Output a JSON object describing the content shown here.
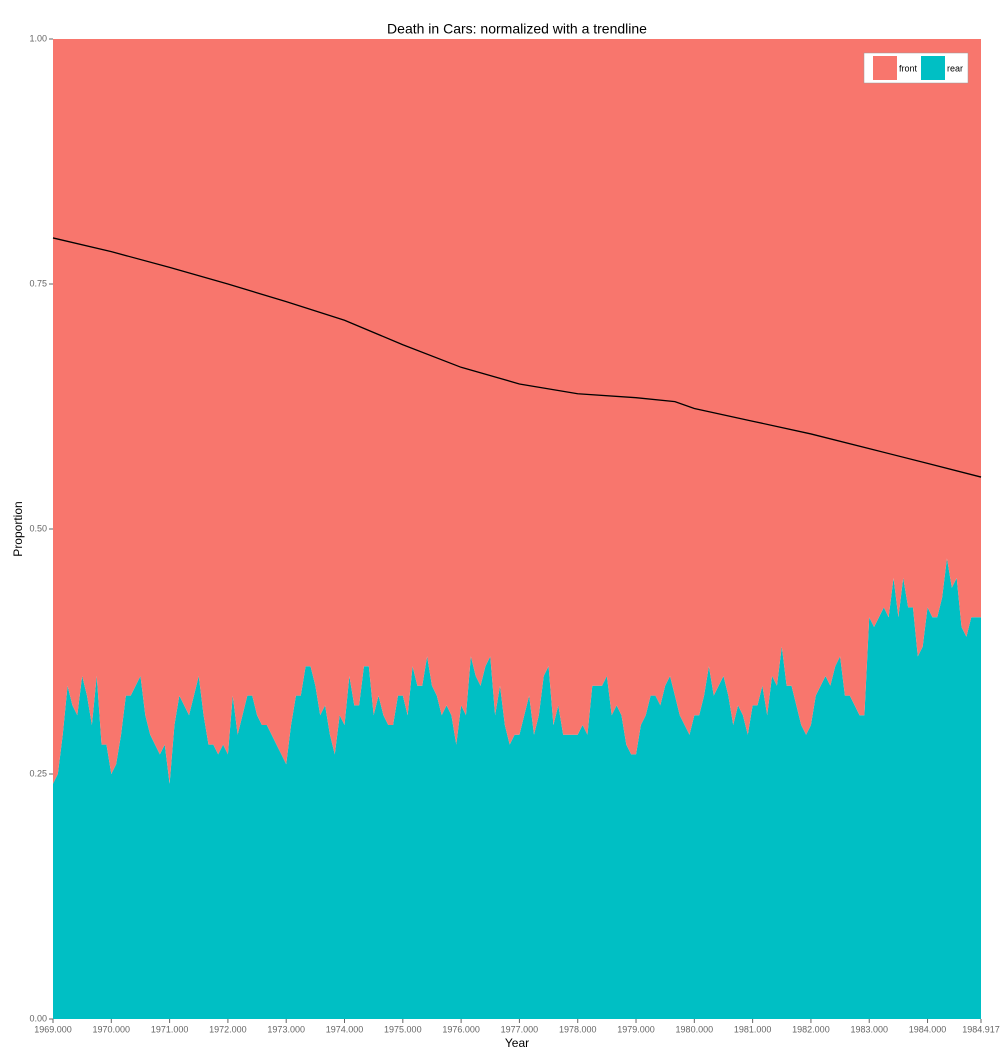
{
  "chart_data": {
    "type": "area",
    "title": "Death in Cars: normalized with a trendline",
    "xlabel": "Year",
    "ylabel": "Proportion",
    "x": [
      1969,
      1969.083,
      1969.167,
      1969.25,
      1969.333,
      1969.417,
      1969.5,
      1969.583,
      1969.667,
      1969.75,
      1969.833,
      1969.917,
      1970,
      1970.083,
      1970.167,
      1970.25,
      1970.333,
      1970.417,
      1970.5,
      1970.583,
      1970.667,
      1970.75,
      1970.833,
      1970.917,
      1971,
      1971.083,
      1971.167,
      1971.25,
      1971.333,
      1971.417,
      1971.5,
      1971.583,
      1971.667,
      1971.75,
      1971.833,
      1971.917,
      1972,
      1972.083,
      1972.167,
      1972.25,
      1972.333,
      1972.417,
      1972.5,
      1972.583,
      1972.667,
      1972.75,
      1972.833,
      1972.917,
      1973,
      1973.083,
      1973.167,
      1973.25,
      1973.333,
      1973.417,
      1973.5,
      1973.583,
      1973.667,
      1973.75,
      1973.833,
      1973.917,
      1974,
      1974.083,
      1974.167,
      1974.25,
      1974.333,
      1974.417,
      1974.5,
      1974.583,
      1974.667,
      1974.75,
      1974.833,
      1974.917,
      1975,
      1975.083,
      1975.167,
      1975.25,
      1975.333,
      1975.417,
      1975.5,
      1975.583,
      1975.667,
      1975.75,
      1975.833,
      1975.917,
      1976,
      1976.083,
      1976.167,
      1976.25,
      1976.333,
      1976.417,
      1976.5,
      1976.583,
      1976.667,
      1976.75,
      1976.833,
      1976.917,
      1977,
      1977.083,
      1977.167,
      1977.25,
      1977.333,
      1977.417,
      1977.5,
      1977.583,
      1977.667,
      1977.75,
      1977.833,
      1977.917,
      1978,
      1978.083,
      1978.167,
      1978.25,
      1978.333,
      1978.417,
      1978.5,
      1978.583,
      1978.667,
      1978.75,
      1978.833,
      1978.917,
      1979,
      1979.083,
      1979.167,
      1979.25,
      1979.333,
      1979.417,
      1979.5,
      1979.583,
      1979.667,
      1979.75,
      1979.833,
      1979.917,
      1980,
      1980.083,
      1980.167,
      1980.25,
      1980.333,
      1980.417,
      1980.5,
      1980.583,
      1980.667,
      1980.75,
      1980.833,
      1980.917,
      1981,
      1981.083,
      1981.167,
      1981.25,
      1981.333,
      1981.417,
      1981.5,
      1981.583,
      1981.667,
      1981.75,
      1981.833,
      1981.917,
      1982,
      1982.083,
      1982.167,
      1982.25,
      1982.333,
      1982.417,
      1982.5,
      1982.583,
      1982.667,
      1982.75,
      1982.833,
      1982.917,
      1983,
      1983.083,
      1983.167,
      1983.25,
      1983.333,
      1983.417,
      1983.5,
      1983.583,
      1983.667,
      1983.75,
      1983.833,
      1983.917,
      1984,
      1984.083,
      1984.167,
      1984.25,
      1984.333,
      1984.417,
      1984.5,
      1984.583,
      1984.667,
      1984.75,
      1984.833,
      1984.917
    ],
    "series": [
      {
        "name": "front",
        "color": "#f8766d",
        "values": [
          0.76,
          0.75,
          0.71,
          0.66,
          0.68,
          0.69,
          0.65,
          0.67,
          0.7,
          0.65,
          0.72,
          0.72,
          0.75,
          0.74,
          0.71,
          0.67,
          0.67,
          0.66,
          0.65,
          0.69,
          0.71,
          0.72,
          0.73,
          0.72,
          0.76,
          0.7,
          0.67,
          0.68,
          0.69,
          0.67,
          0.65,
          0.69,
          0.72,
          0.72,
          0.73,
          0.72,
          0.73,
          0.67,
          0.71,
          0.69,
          0.67,
          0.67,
          0.69,
          0.7,
          0.7,
          0.71,
          0.72,
          0.73,
          0.74,
          0.7,
          0.67,
          0.67,
          0.64,
          0.64,
          0.66,
          0.69,
          0.68,
          0.71,
          0.73,
          0.69,
          0.7,
          0.65,
          0.68,
          0.68,
          0.64,
          0.64,
          0.69,
          0.67,
          0.69,
          0.7,
          0.7,
          0.67,
          0.67,
          0.69,
          0.64,
          0.66,
          0.66,
          0.63,
          0.66,
          0.67,
          0.69,
          0.68,
          0.69,
          0.72,
          0.68,
          0.69,
          0.63,
          0.65,
          0.66,
          0.64,
          0.63,
          0.69,
          0.66,
          0.7,
          0.72,
          0.71,
          0.71,
          0.69,
          0.67,
          0.71,
          0.69,
          0.65,
          0.64,
          0.7,
          0.68,
          0.71,
          0.71,
          0.71,
          0.71,
          0.7,
          0.71,
          0.66,
          0.66,
          0.66,
          0.65,
          0.69,
          0.68,
          0.69,
          0.72,
          0.73,
          0.73,
          0.7,
          0.69,
          0.67,
          0.67,
          0.68,
          0.66,
          0.65,
          0.67,
          0.69,
          0.7,
          0.71,
          0.69,
          0.69,
          0.67,
          0.64,
          0.67,
          0.66,
          0.65,
          0.67,
          0.7,
          0.68,
          0.69,
          0.71,
          0.68,
          0.68,
          0.66,
          0.69,
          0.65,
          0.66,
          0.62,
          0.66,
          0.66,
          0.68,
          0.7,
          0.71,
          0.7,
          0.67,
          0.66,
          0.65,
          0.66,
          0.64,
          0.63,
          0.67,
          0.67,
          0.68,
          0.69,
          0.69,
          0.59,
          0.6,
          0.59,
          0.58,
          0.59,
          0.55,
          0.59,
          0.55,
          0.58,
          0.58,
          0.63,
          0.62,
          0.58,
          0.59,
          0.59,
          0.57,
          0.53,
          0.56,
          0.55,
          0.6,
          0.61,
          0.59,
          0.59,
          0.59
        ]
      },
      {
        "name": "rear",
        "color": "#00bfc4",
        "values": [
          0.24,
          0.25,
          0.29,
          0.34,
          0.32,
          0.31,
          0.35,
          0.33,
          0.3,
          0.35,
          0.28,
          0.28,
          0.25,
          0.26,
          0.29,
          0.33,
          0.33,
          0.34,
          0.35,
          0.31,
          0.29,
          0.28,
          0.27,
          0.28,
          0.24,
          0.3,
          0.33,
          0.32,
          0.31,
          0.33,
          0.35,
          0.31,
          0.28,
          0.28,
          0.27,
          0.28,
          0.27,
          0.33,
          0.29,
          0.31,
          0.33,
          0.33,
          0.31,
          0.3,
          0.3,
          0.29,
          0.28,
          0.27,
          0.26,
          0.3,
          0.33,
          0.33,
          0.36,
          0.36,
          0.34,
          0.31,
          0.32,
          0.29,
          0.27,
          0.31,
          0.3,
          0.35,
          0.32,
          0.32,
          0.36,
          0.36,
          0.31,
          0.33,
          0.31,
          0.3,
          0.3,
          0.33,
          0.33,
          0.31,
          0.36,
          0.34,
          0.34,
          0.37,
          0.34,
          0.33,
          0.31,
          0.32,
          0.31,
          0.28,
          0.32,
          0.31,
          0.37,
          0.35,
          0.34,
          0.36,
          0.37,
          0.31,
          0.34,
          0.3,
          0.28,
          0.29,
          0.29,
          0.31,
          0.33,
          0.29,
          0.31,
          0.35,
          0.36,
          0.3,
          0.32,
          0.29,
          0.29,
          0.29,
          0.29,
          0.3,
          0.29,
          0.34,
          0.34,
          0.34,
          0.35,
          0.31,
          0.32,
          0.31,
          0.28,
          0.27,
          0.27,
          0.3,
          0.31,
          0.33,
          0.33,
          0.32,
          0.34,
          0.35,
          0.33,
          0.31,
          0.3,
          0.29,
          0.31,
          0.31,
          0.33,
          0.36,
          0.33,
          0.34,
          0.35,
          0.33,
          0.3,
          0.32,
          0.31,
          0.29,
          0.32,
          0.32,
          0.34,
          0.31,
          0.35,
          0.34,
          0.38,
          0.34,
          0.34,
          0.32,
          0.3,
          0.29,
          0.3,
          0.33,
          0.34,
          0.35,
          0.34,
          0.36,
          0.37,
          0.33,
          0.33,
          0.32,
          0.31,
          0.31,
          0.41,
          0.4,
          0.41,
          0.42,
          0.41,
          0.45,
          0.41,
          0.45,
          0.42,
          0.42,
          0.37,
          0.38,
          0.42,
          0.41,
          0.41,
          0.43,
          0.47,
          0.44,
          0.45,
          0.4,
          0.39,
          0.41,
          0.41,
          0.41
        ]
      }
    ],
    "trendline": {
      "color": "#000000",
      "x": [
        1969,
        1970,
        1971,
        1972,
        1973,
        1974,
        1975,
        1976,
        1977,
        1978,
        1979,
        1979.667,
        1980,
        1981,
        1982,
        1983,
        1984,
        1984.917
      ],
      "values": [
        0.797,
        0.783,
        0.767,
        0.75,
        0.732,
        0.713,
        0.688,
        0.665,
        0.648,
        0.638,
        0.634,
        0.63,
        0.623,
        0.61,
        0.597,
        0.582,
        0.567,
        0.553
      ]
    },
    "xlim": [
      1969,
      1984.917
    ],
    "xticks": [
      {
        "value": 1969,
        "label": "1969.000"
      },
      {
        "value": 1970,
        "label": "1970.000"
      },
      {
        "value": 1971,
        "label": "1971.000"
      },
      {
        "value": 1972,
        "label": "1972.000"
      },
      {
        "value": 1973,
        "label": "1973.000"
      },
      {
        "value": 1974,
        "label": "1974.000"
      },
      {
        "value": 1975,
        "label": "1975.000"
      },
      {
        "value": 1976,
        "label": "1976.000"
      },
      {
        "value": 1977,
        "label": "1977.000"
      },
      {
        "value": 1978,
        "label": "1978.000"
      },
      {
        "value": 1979,
        "label": "1979.000"
      },
      {
        "value": 1980,
        "label": "1980.000"
      },
      {
        "value": 1981,
        "label": "1981.000"
      },
      {
        "value": 1982,
        "label": "1982.000"
      },
      {
        "value": 1983,
        "label": "1983.000"
      },
      {
        "value": 1984,
        "label": "1984.000"
      },
      1984.917
    ],
    "ylim": [
      0,
      1
    ],
    "yticks": [
      {
        "value": 0,
        "label": "0.00"
      },
      0.25,
      {
        "value": 0.5,
        "label": "0.50"
      },
      0.75,
      {
        "value": 1,
        "label": "1.00"
      }
    ],
    "legend": "top-right"
  }
}
